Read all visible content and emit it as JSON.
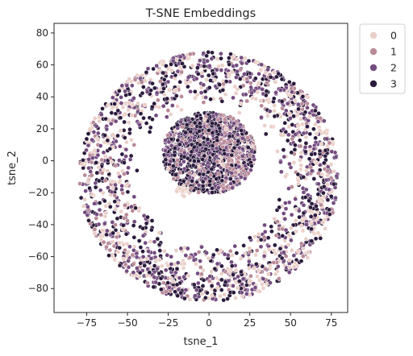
{
  "chart_data": {
    "type": "scatter",
    "title": "T-SNE Embeddings",
    "xlabel": "tsne_1",
    "ylabel": "tsne_2",
    "xlim": [
      -95,
      85
    ],
    "ylim": [
      -95,
      86
    ],
    "xticks": [
      -75,
      -50,
      -25,
      0,
      25,
      50,
      75
    ],
    "yticks": [
      -80,
      -60,
      -40,
      -20,
      0,
      20,
      40,
      60,
      80
    ],
    "xtick_labels": [
      "−75",
      "−50",
      "−25",
      "0",
      "25",
      "50",
      "75"
    ],
    "ytick_labels": [
      "−80",
      "−60",
      "−40",
      "−20",
      "0",
      "20",
      "40",
      "60",
      "80"
    ],
    "grid": false,
    "legend": {
      "placement": "outside-top-right",
      "entries": [
        "0",
        "1",
        "2",
        "3"
      ]
    },
    "series_colors": [
      "#ead0c8",
      "#b98a98",
      "#744c80",
      "#2a1a3c"
    ],
    "structure": [
      {
        "region": "central-cluster",
        "center": [
          0,
          5
        ],
        "radius": 27
      },
      {
        "region": "outer-ring",
        "center": [
          0,
          -10
        ],
        "inner_radius": 42,
        "outer_radius": 78
      }
    ]
  }
}
